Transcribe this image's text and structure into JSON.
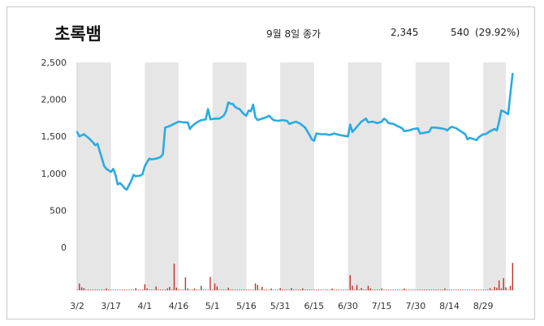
{
  "header": {
    "stock_name": "초록뱀",
    "close_label": "9월 8일 종가",
    "close_price": "2,345",
    "change": "540",
    "change_pct": "(29.92%)"
  },
  "colors": {
    "price_line": "#29abe2",
    "volume_bar": "#c0302e",
    "band": "#e6e6e6",
    "axis_text": "#333333"
  },
  "chart_data": [
    {
      "type": "line",
      "ylim": [
        0,
        2500
      ],
      "yticks": [
        0,
        500,
        1000,
        1500,
        2000,
        2500
      ],
      "ytick_labels": [
        "0",
        "500",
        "1,000",
        "1,500",
        "2,000",
        "2,500"
      ],
      "x_tick_labels": [
        "3/2",
        "3/17",
        "4/1",
        "4/16",
        "5/1",
        "5/16",
        "5/31",
        "6/15",
        "6/30",
        "7/15",
        "7/30",
        "8/14",
        "8/29"
      ],
      "x_day_range": [
        0,
        190
      ],
      "shaded_bands": [
        [
          0,
          15
        ],
        [
          30,
          45
        ],
        [
          60,
          75
        ],
        [
          90,
          105
        ],
        [
          120,
          135
        ],
        [
          150,
          165
        ],
        [
          180,
          190
        ]
      ],
      "series": [
        {
          "points": [
            [
              0,
              1560
            ],
            [
              1,
              1500
            ],
            [
              3,
              1530
            ],
            [
              5,
              1480
            ],
            [
              7,
              1420
            ],
            [
              8,
              1380
            ],
            [
              9,
              1400
            ],
            [
              10,
              1300
            ],
            [
              11,
              1200
            ],
            [
              12,
              1100
            ],
            [
              13,
              1060
            ],
            [
              14,
              1040
            ],
            [
              15,
              1020
            ],
            [
              16,
              1060
            ],
            [
              17,
              980
            ],
            [
              18,
              850
            ],
            [
              19,
              870
            ],
            [
              20,
              840
            ],
            [
              21,
              800
            ],
            [
              22,
              780
            ],
            [
              24,
              900
            ],
            [
              25,
              980
            ],
            [
              26,
              960
            ],
            [
              28,
              970
            ],
            [
              29,
              990
            ],
            [
              30,
              1100
            ],
            [
              31,
              1150
            ],
            [
              32,
              1200
            ],
            [
              33,
              1190
            ],
            [
              35,
              1200
            ],
            [
              37,
              1220
            ],
            [
              38,
              1260
            ],
            [
              39,
              1620
            ],
            [
              41,
              1640
            ],
            [
              43,
              1670
            ],
            [
              45,
              1700
            ],
            [
              47,
              1690
            ],
            [
              49,
              1690
            ],
            [
              50,
              1600
            ],
            [
              51,
              1640
            ],
            [
              53,
              1690
            ],
            [
              55,
              1720
            ],
            [
              57,
              1730
            ],
            [
              58,
              1870
            ],
            [
              59,
              1730
            ],
            [
              61,
              1740
            ],
            [
              63,
              1740
            ],
            [
              65,
              1780
            ],
            [
              66,
              1840
            ],
            [
              67,
              1960
            ],
            [
              68,
              1940
            ],
            [
              69,
              1940
            ],
            [
              70,
              1900
            ],
            [
              71,
              1880
            ],
            [
              72,
              1870
            ],
            [
              73,
              1830
            ],
            [
              74,
              1800
            ],
            [
              75,
              1780
            ],
            [
              76,
              1850
            ],
            [
              77,
              1840
            ],
            [
              78,
              1930
            ],
            [
              79,
              1760
            ],
            [
              80,
              1720
            ],
            [
              82,
              1740
            ],
            [
              84,
              1760
            ],
            [
              85,
              1780
            ],
            [
              87,
              1720
            ],
            [
              89,
              1710
            ],
            [
              91,
              1720
            ],
            [
              93,
              1710
            ],
            [
              94,
              1670
            ],
            [
              96,
              1690
            ],
            [
              97,
              1700
            ],
            [
              99,
              1670
            ],
            [
              101,
              1620
            ],
            [
              103,
              1520
            ],
            [
              104,
              1460
            ],
            [
              105,
              1440
            ],
            [
              106,
              1540
            ],
            [
              108,
              1530
            ],
            [
              110,
              1530
            ],
            [
              112,
              1520
            ],
            [
              114,
              1540
            ],
            [
              116,
              1520
            ],
            [
              118,
              1510
            ],
            [
              120,
              1500
            ],
            [
              121,
              1660
            ],
            [
              122,
              1560
            ],
            [
              124,
              1630
            ],
            [
              126,
              1700
            ],
            [
              128,
              1740
            ],
            [
              129,
              1690
            ],
            [
              131,
              1700
            ],
            [
              133,
              1680
            ],
            [
              135,
              1700
            ],
            [
              136,
              1740
            ],
            [
              137,
              1720
            ],
            [
              138,
              1680
            ],
            [
              140,
              1670
            ],
            [
              142,
              1640
            ],
            [
              144,
              1610
            ],
            [
              145,
              1570
            ],
            [
              147,
              1580
            ],
            [
              149,
              1600
            ],
            [
              151,
              1610
            ],
            [
              152,
              1540
            ],
            [
              154,
              1550
            ],
            [
              156,
              1560
            ],
            [
              157,
              1620
            ],
            [
              159,
              1620
            ],
            [
              161,
              1610
            ],
            [
              163,
              1600
            ],
            [
              164,
              1580
            ],
            [
              165,
              1610
            ],
            [
              166,
              1630
            ],
            [
              168,
              1610
            ],
            [
              170,
              1570
            ],
            [
              172,
              1530
            ],
            [
              173,
              1460
            ],
            [
              174,
              1480
            ],
            [
              176,
              1460
            ],
            [
              177,
              1450
            ],
            [
              178,
              1490
            ],
            [
              180,
              1530
            ],
            [
              181,
              1530
            ],
            [
              183,
              1570
            ],
            [
              185,
              1600
            ],
            [
              186,
              1580
            ],
            [
              187,
              1700
            ],
            [
              188,
              1850
            ],
            [
              189,
              1840
            ],
            [
              190,
              1820
            ],
            [
              191,
              1800
            ],
            [
              193,
              2345
            ]
          ]
        }
      ]
    },
    {
      "type": "bar",
      "series": [
        {
          "spikes": [
            [
              1,
              0.18
            ],
            [
              2,
              0.08
            ],
            [
              3,
              0.06
            ],
            [
              13,
              0.05
            ],
            [
              26,
              0.06
            ],
            [
              30,
              0.16
            ],
            [
              31,
              0.05
            ],
            [
              35,
              0.1
            ],
            [
              40,
              0.05
            ],
            [
              41,
              0.09
            ],
            [
              43,
              0.7
            ],
            [
              44,
              0.07
            ],
            [
              48,
              0.34
            ],
            [
              49,
              0.05
            ],
            [
              52,
              0.05
            ],
            [
              55,
              0.12
            ],
            [
              59,
              0.35
            ],
            [
              61,
              0.18
            ],
            [
              62,
              0.1
            ],
            [
              67,
              0.07
            ],
            [
              79,
              0.18
            ],
            [
              80,
              0.14
            ],
            [
              82,
              0.09
            ],
            [
              86,
              0.05
            ],
            [
              90,
              0.06
            ],
            [
              95,
              0.06
            ],
            [
              100,
              0.05
            ],
            [
              113,
              0.05
            ],
            [
              121,
              0.4
            ],
            [
              122,
              0.12
            ],
            [
              124,
              0.14
            ],
            [
              126,
              0.06
            ],
            [
              129,
              0.12
            ],
            [
              130,
              0.05
            ],
            [
              135,
              0.05
            ],
            [
              145,
              0.05
            ],
            [
              163,
              0.05
            ],
            [
              183,
              0.06
            ],
            [
              185,
              0.09
            ],
            [
              186,
              0.07
            ],
            [
              187,
              0.26
            ],
            [
              188,
              0.05
            ],
            [
              189,
              0.32
            ],
            [
              190,
              0.08
            ],
            [
              192,
              0.12
            ],
            [
              193,
              0.72
            ]
          ],
          "baseline": 0.02
        }
      ]
    }
  ]
}
